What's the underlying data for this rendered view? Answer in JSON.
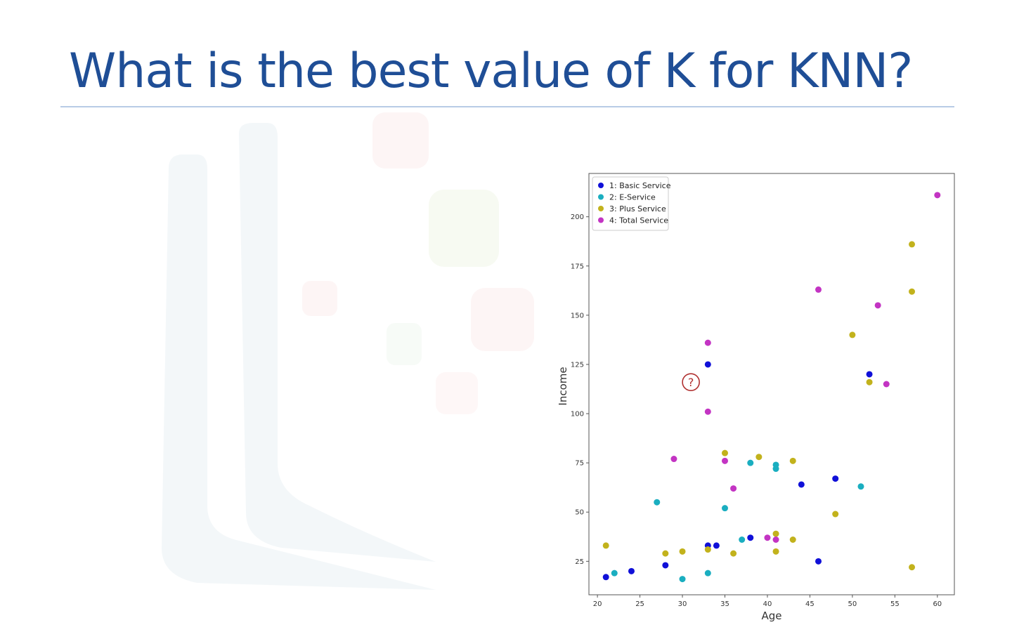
{
  "slide": {
    "title": "What is the best value of K for KNN?"
  },
  "colors": {
    "title": "#1f4e96",
    "basic": "#1010d8",
    "eservice": "#1aaec0",
    "plus": "#c2b21c",
    "total": "#c334c3",
    "query": "#b03030"
  },
  "chart_data": {
    "type": "scatter",
    "xlabel": "Age",
    "ylabel": "Income",
    "xlim": [
      19,
      62
    ],
    "ylim": [
      8,
      222
    ],
    "x_ticks": [
      20,
      25,
      30,
      35,
      40,
      45,
      50,
      55,
      60
    ],
    "y_ticks": [
      25,
      50,
      75,
      100,
      125,
      150,
      175,
      200
    ],
    "grid": false,
    "legend_position": "top-left",
    "query_point": {
      "x": 31,
      "y": 116,
      "label": "?"
    },
    "series": [
      {
        "name": "1: Basic Service",
        "color": "#1010d8",
        "points": [
          [
            21,
            17
          ],
          [
            24,
            20
          ],
          [
            28,
            23
          ],
          [
            33,
            33
          ],
          [
            34,
            33
          ],
          [
            33,
            125
          ],
          [
            38,
            37
          ],
          [
            44,
            64
          ],
          [
            46,
            25
          ],
          [
            48,
            67
          ],
          [
            52,
            120
          ]
        ]
      },
      {
        "name": "2: E-Service",
        "color": "#1aaec0",
        "points": [
          [
            22,
            19
          ],
          [
            27,
            55
          ],
          [
            30,
            16
          ],
          [
            33,
            19
          ],
          [
            35,
            52
          ],
          [
            37,
            36
          ],
          [
            38,
            75
          ],
          [
            41,
            74
          ],
          [
            41,
            72
          ],
          [
            51,
            63
          ]
        ]
      },
      {
        "name": "3: Plus Service",
        "color": "#c2b21c",
        "points": [
          [
            21,
            33
          ],
          [
            28,
            29
          ],
          [
            30,
            30
          ],
          [
            33,
            31
          ],
          [
            35,
            80
          ],
          [
            36,
            29
          ],
          [
            39,
            78
          ],
          [
            41,
            39
          ],
          [
            41,
            30
          ],
          [
            43,
            76
          ],
          [
            43,
            36
          ],
          [
            48,
            49
          ],
          [
            50,
            140
          ],
          [
            52,
            116
          ],
          [
            57,
            186
          ],
          [
            57,
            162
          ],
          [
            57,
            22
          ]
        ]
      },
      {
        "name": "4: Total Service",
        "color": "#c334c3",
        "points": [
          [
            29,
            77
          ],
          [
            33,
            136
          ],
          [
            33,
            101
          ],
          [
            35,
            76
          ],
          [
            36,
            62
          ],
          [
            40,
            37
          ],
          [
            41,
            36
          ],
          [
            46,
            163
          ],
          [
            53,
            155
          ],
          [
            54,
            115
          ],
          [
            60,
            211
          ]
        ]
      }
    ]
  }
}
